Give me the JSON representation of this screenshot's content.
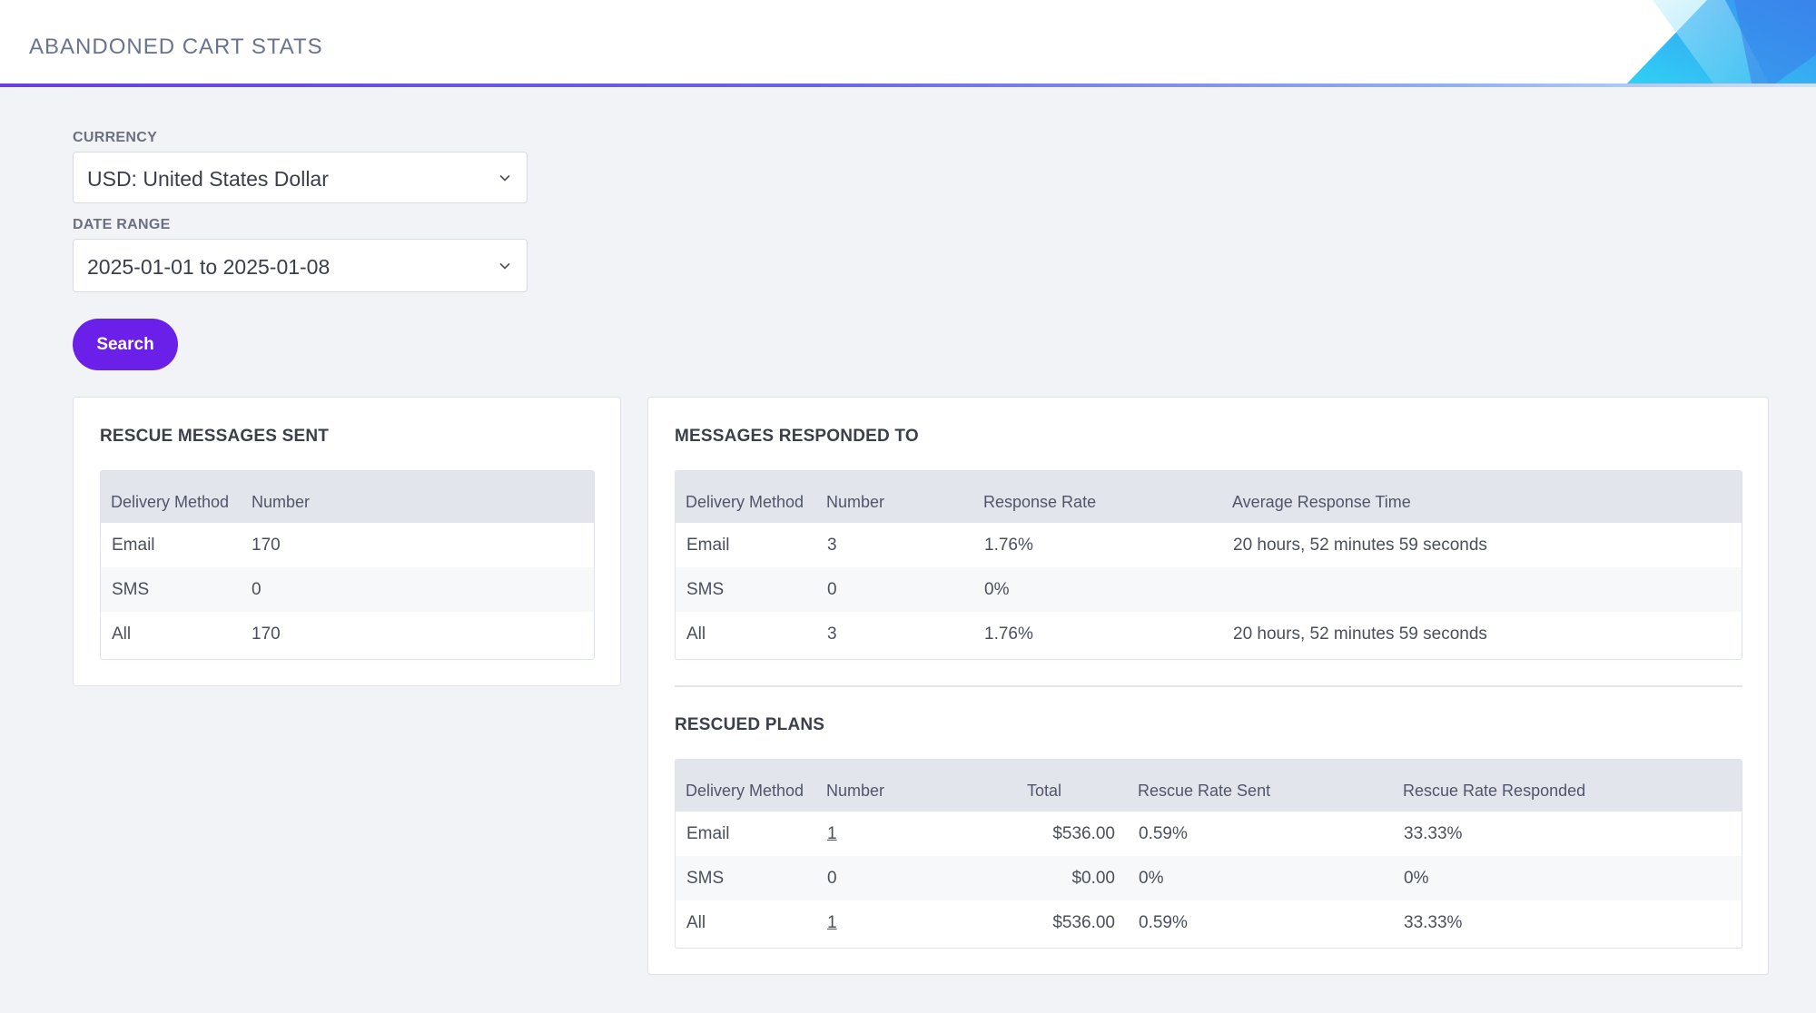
{
  "header": {
    "title": "ABANDONED CART STATS"
  },
  "filters": {
    "currency_label": "CURRENCY",
    "currency_value": "USD: United States Dollar",
    "date_range_label": "DATE RANGE",
    "date_range_value": "2025-01-01 to 2025-01-08",
    "search_label": "Search"
  },
  "rescue_sent": {
    "title": "RESCUE MESSAGES SENT",
    "columns": [
      "Delivery Method",
      "Number"
    ],
    "rows": [
      [
        "Email",
        "170"
      ],
      [
        "SMS",
        "0"
      ],
      [
        "All",
        "170"
      ]
    ]
  },
  "responded": {
    "title": "MESSAGES RESPONDED TO",
    "columns": [
      "Delivery Method",
      "Number",
      "Response Rate",
      "Average Response Time"
    ],
    "rows": [
      [
        "Email",
        "3",
        "1.76%",
        "20 hours, 52 minutes 59 seconds"
      ],
      [
        "SMS",
        "0",
        "0%",
        ""
      ],
      [
        "All",
        "3",
        "1.76%",
        "20 hours, 52 minutes 59 seconds"
      ]
    ]
  },
  "rescued_plans": {
    "title": "RESCUED PLANS",
    "columns": [
      "Delivery Method",
      "Number",
      "Total",
      "Rescue Rate Sent",
      "Rescue Rate Responded"
    ],
    "rows": [
      [
        "Email",
        "1",
        "$536.00",
        "0.59%",
        "33.33%"
      ],
      [
        "SMS",
        "0",
        "$0.00",
        "0%",
        "0%"
      ],
      [
        "All",
        "1",
        "$536.00",
        "0.59%",
        "33.33%"
      ]
    ]
  },
  "icons": {
    "dropdown": "chevron-down-icon"
  },
  "colors": {
    "accent": "#6a20e8",
    "link": "#1fa3b0",
    "header_text": "#6a7390"
  }
}
